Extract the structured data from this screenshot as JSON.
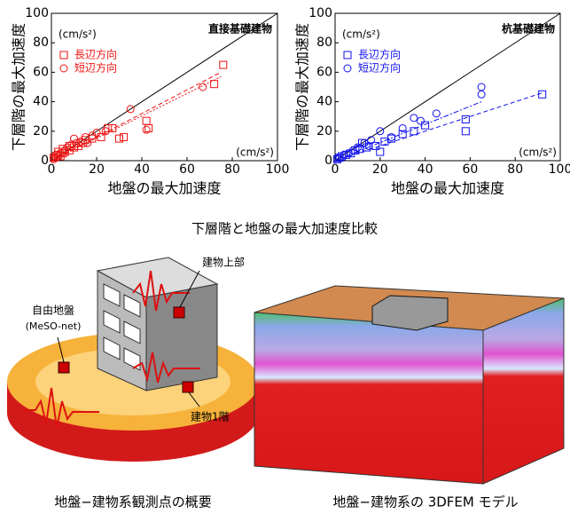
{
  "chart_data": [
    {
      "type": "scatter",
      "title": "直接基礎建物",
      "x_label": "地盤の最大加速度",
      "y_label": "下層階の最大加速度",
      "unit": "(cm/s²)",
      "xlim": [
        0,
        100
      ],
      "ylim": [
        0,
        100
      ],
      "xticks": [
        0,
        20,
        40,
        60,
        80,
        100
      ],
      "yticks": [
        0,
        20,
        40,
        60,
        80,
        100
      ],
      "series": [
        {
          "name": "長辺方向",
          "color": "#ee1111",
          "marker": "square",
          "x": [
            1,
            2,
            3,
            4,
            5,
            6,
            8,
            10,
            12,
            14,
            15,
            18,
            22,
            25,
            27,
            30,
            32,
            42,
            43,
            72,
            76,
            8,
            5,
            3
          ],
          "values": [
            2,
            3,
            4,
            3,
            5,
            6,
            7,
            9,
            10,
            12,
            14,
            15,
            16,
            22,
            22,
            15,
            16,
            27,
            22,
            52,
            65,
            10,
            8,
            6
          ]
        },
        {
          "name": "短辺方向",
          "color": "#ee1111",
          "marker": "circle",
          "x": [
            1,
            2,
            3,
            4,
            6,
            7,
            9,
            11,
            13,
            15,
            18,
            20,
            24,
            35,
            42,
            67,
            2,
            10,
            16
          ],
          "values": [
            1,
            2,
            3,
            5,
            7,
            9,
            11,
            12,
            13,
            16,
            17,
            19,
            20,
            35,
            21,
            50,
            4,
            15,
            12
          ]
        }
      ],
      "trend_lines": [
        {
          "color": "#ee1111",
          "style": "dash",
          "x": [
            0,
            75
          ],
          "y": [
            0,
            60
          ]
        },
        {
          "color": "#ee1111",
          "style": "dot",
          "x": [
            0,
            75
          ],
          "y": [
            0,
            57
          ]
        }
      ]
    },
    {
      "type": "scatter",
      "title": "杭基礎建物",
      "x_label": "地盤の最大加速度",
      "y_label": "下層階の最大加速度",
      "unit": "(cm/s²)",
      "xlim": [
        0,
        100
      ],
      "ylim": [
        0,
        100
      ],
      "xticks": [
        0,
        20,
        40,
        60,
        80,
        100
      ],
      "yticks": [
        0,
        20,
        40,
        60,
        80,
        100
      ],
      "series": [
        {
          "name": "長辺方向",
          "color": "#1111ee",
          "marker": "square",
          "x": [
            1,
            2,
            3,
            5,
            7,
            9,
            11,
            14,
            18,
            22,
            25,
            30,
            35,
            40,
            58,
            58,
            92,
            20,
            12
          ],
          "values": [
            1,
            2,
            3,
            4,
            5,
            7,
            8,
            9,
            10,
            13,
            15,
            18,
            20,
            24,
            20,
            28,
            45,
            6,
            12
          ]
        },
        {
          "name": "短辺方向",
          "color": "#1111ee",
          "marker": "circle",
          "x": [
            1,
            2,
            4,
            6,
            8,
            10,
            13,
            16,
            20,
            25,
            30,
            35,
            38,
            45,
            65,
            65,
            15
          ],
          "values": [
            1,
            2,
            4,
            5,
            7,
            9,
            12,
            14,
            20,
            16,
            22,
            29,
            27,
            32,
            45,
            50,
            10
          ]
        }
      ],
      "trend_lines": [
        {
          "color": "#1111ee",
          "style": "dash",
          "x": [
            0,
            92
          ],
          "y": [
            0,
            46
          ]
        },
        {
          "color": "#1111ee",
          "style": "dashdot",
          "x": [
            0,
            65
          ],
          "y": [
            0,
            40
          ]
        }
      ]
    }
  ],
  "chart_caption": "下層階と地盤の最大加速度比較",
  "diagram": {
    "labels": [
      "建物上部",
      "自由地盤",
      "(MeSO-net)",
      "建物1階"
    ],
    "caption": "地盤−建物系観測点の概要"
  },
  "model": {
    "caption": "地盤−建物系の 3DFEM モデル"
  }
}
